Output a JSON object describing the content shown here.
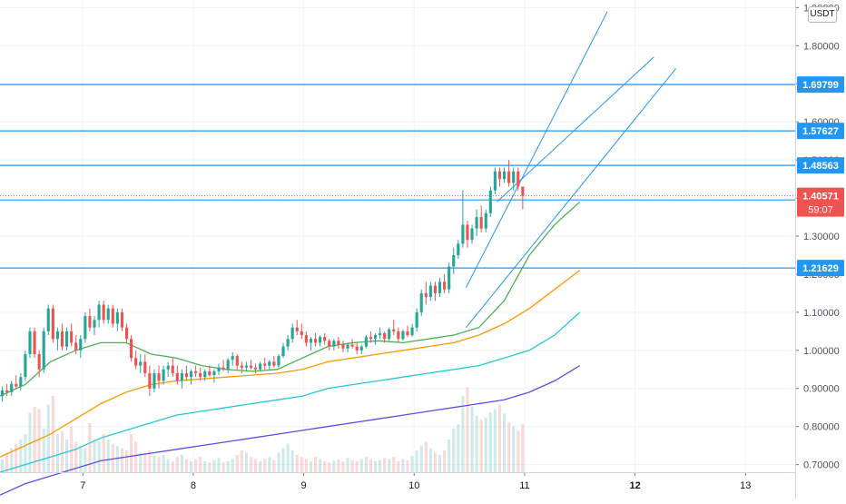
{
  "currency_label": "USDT",
  "chart_data": {
    "type": "candlestick",
    "y_axis": {
      "ticks": [
        "1.90000",
        "1.80000",
        "1.70000",
        "1.60000",
        "1.50000",
        "1.40000",
        "1.30000",
        "1.20000",
        "1.10000",
        "1.00000",
        "0.90000",
        "0.80000",
        "0.70000"
      ],
      "ylim": [
        0.68,
        1.92
      ]
    },
    "x_axis": {
      "ticks": [
        {
          "label": "7",
          "x": 7
        },
        {
          "label": "8",
          "x": 8
        },
        {
          "label": "9",
          "x": 9
        },
        {
          "label": "10",
          "x": 10
        },
        {
          "label": "11",
          "x": 11
        },
        {
          "label": "12",
          "x": 12,
          "bold": true
        },
        {
          "label": "13",
          "x": 13
        }
      ],
      "xlim": [
        6.25,
        13.45
      ]
    },
    "horizontal_levels": [
      {
        "value": 1.69799,
        "label": "1.69799"
      },
      {
        "value": 1.57627,
        "label": "1.57627"
      },
      {
        "value": 1.48563,
        "label": "1.48563"
      },
      {
        "value": 1.39498,
        "label": "1.39498"
      },
      {
        "value": 1.21629,
        "label": "1.21629"
      }
    ],
    "current_price": {
      "value": 1.40571,
      "label": "1.40571",
      "countdown": "59:07"
    },
    "candles": {
      "start_x": 6.25,
      "step": 0.0417,
      "ohlc": [
        [
          0.88,
          0.905,
          0.865,
          0.895
        ],
        [
          0.895,
          0.912,
          0.88,
          0.89
        ],
        [
          0.89,
          0.92,
          0.88,
          0.912
        ],
        [
          0.912,
          0.935,
          0.9,
          0.905
        ],
        [
          0.905,
          0.94,
          0.895,
          0.93
        ],
        [
          0.93,
          1.0,
          0.92,
          0.99
        ],
        [
          0.99,
          1.06,
          0.98,
          1.05
        ],
        [
          1.05,
          1.06,
          0.98,
          0.99
        ],
        [
          0.99,
          1.0,
          0.93,
          0.95
        ],
        [
          0.95,
          1.06,
          0.94,
          1.05
        ],
        [
          1.05,
          1.12,
          1.04,
          1.11
        ],
        [
          1.11,
          1.12,
          1.02,
          1.03
        ],
        [
          1.03,
          1.06,
          1.0,
          1.05
        ],
        [
          1.05,
          1.07,
          1.0,
          1.01
        ],
        [
          1.01,
          1.06,
          1.0,
          1.05
        ],
        [
          1.05,
          1.07,
          1.01,
          1.02
        ],
        [
          1.02,
          1.04,
          0.99,
          1.0
        ],
        [
          1.0,
          1.04,
          0.98,
          1.03
        ],
        [
          1.03,
          1.1,
          1.02,
          1.09
        ],
        [
          1.09,
          1.11,
          1.05,
          1.06
        ],
        [
          1.06,
          1.09,
          1.04,
          1.08
        ],
        [
          1.08,
          1.13,
          1.06,
          1.12
        ],
        [
          1.12,
          1.13,
          1.07,
          1.08
        ],
        [
          1.08,
          1.12,
          1.07,
          1.11
        ],
        [
          1.11,
          1.12,
          1.06,
          1.07
        ],
        [
          1.07,
          1.11,
          1.05,
          1.1
        ],
        [
          1.1,
          1.11,
          1.05,
          1.06
        ],
        [
          1.06,
          1.07,
          1.02,
          1.03
        ],
        [
          1.03,
          1.04,
          0.97,
          0.98
        ],
        [
          0.98,
          1.0,
          0.95,
          0.96
        ],
        [
          0.96,
          0.99,
          0.94,
          0.97
        ],
        [
          0.97,
          0.99,
          0.93,
          0.94
        ],
        [
          0.94,
          0.96,
          0.88,
          0.9
        ],
        [
          0.9,
          0.95,
          0.89,
          0.94
        ],
        [
          0.94,
          0.96,
          0.9,
          0.92
        ],
        [
          0.92,
          0.96,
          0.91,
          0.95
        ],
        [
          0.95,
          0.97,
          0.93,
          0.96
        ],
        [
          0.96,
          0.98,
          0.93,
          0.94
        ],
        [
          0.94,
          0.96,
          0.91,
          0.92
        ],
        [
          0.92,
          0.95,
          0.9,
          0.94
        ],
        [
          0.94,
          0.96,
          0.92,
          0.93
        ],
        [
          0.93,
          0.95,
          0.91,
          0.945
        ],
        [
          0.945,
          0.96,
          0.93,
          0.94
        ],
        [
          0.94,
          0.955,
          0.92,
          0.93
        ],
        [
          0.93,
          0.95,
          0.92,
          0.945
        ],
        [
          0.945,
          0.96,
          0.93,
          0.935
        ],
        [
          0.935,
          0.95,
          0.915,
          0.945
        ],
        [
          0.945,
          0.965,
          0.935,
          0.955
        ],
        [
          0.955,
          0.975,
          0.945,
          0.95
        ],
        [
          0.95,
          0.98,
          0.94,
          0.975
        ],
        [
          0.975,
          0.995,
          0.96,
          0.985
        ],
        [
          0.985,
          0.99,
          0.95,
          0.96
        ],
        [
          0.96,
          0.97,
          0.94,
          0.955
        ],
        [
          0.955,
          0.97,
          0.945,
          0.96
        ],
        [
          0.96,
          0.975,
          0.95,
          0.955
        ],
        [
          0.955,
          0.965,
          0.94,
          0.95
        ],
        [
          0.95,
          0.97,
          0.945,
          0.965
        ],
        [
          0.965,
          0.98,
          0.95,
          0.96
        ],
        [
          0.96,
          0.975,
          0.95,
          0.97
        ],
        [
          0.97,
          0.985,
          0.955,
          0.96
        ],
        [
          0.96,
          0.99,
          0.955,
          0.985
        ],
        [
          0.985,
          1.02,
          0.98,
          1.01
        ],
        [
          1.01,
          1.04,
          1.0,
          1.03
        ],
        [
          1.03,
          1.07,
          1.02,
          1.06
        ],
        [
          1.06,
          1.08,
          1.04,
          1.05
        ],
        [
          1.05,
          1.07,
          1.03,
          1.04
        ],
        [
          1.04,
          1.05,
          1.01,
          1.02
        ],
        [
          1.02,
          1.035,
          1.0,
          1.03
        ],
        [
          1.03,
          1.045,
          1.01,
          1.02
        ],
        [
          1.02,
          1.04,
          1.01,
          1.035
        ],
        [
          1.035,
          1.045,
          1.015,
          1.025
        ],
        [
          1.025,
          1.03,
          1.0,
          1.01
        ],
        [
          1.01,
          1.03,
          1.0,
          1.025
        ],
        [
          1.025,
          1.035,
          1.005,
          1.015
        ],
        [
          1.015,
          1.025,
          0.995,
          1.005
        ],
        [
          1.005,
          1.02,
          0.995,
          1.015
        ],
        [
          1.015,
          1.03,
          1.005,
          1.01
        ],
        [
          1.01,
          1.02,
          0.99,
          1.0
        ],
        [
          1.0,
          1.015,
          0.99,
          1.01
        ],
        [
          1.01,
          1.04,
          1.005,
          1.035
        ],
        [
          1.035,
          1.05,
          1.02,
          1.03
        ],
        [
          1.03,
          1.045,
          1.015,
          1.04
        ],
        [
          1.04,
          1.06,
          1.03,
          1.045
        ],
        [
          1.045,
          1.05,
          1.02,
          1.03
        ],
        [
          1.03,
          1.06,
          1.025,
          1.055
        ],
        [
          1.055,
          1.08,
          1.04,
          1.05
        ],
        [
          1.05,
          1.06,
          1.02,
          1.03
        ],
        [
          1.03,
          1.055,
          1.025,
          1.05
        ],
        [
          1.05,
          1.065,
          1.035,
          1.04
        ],
        [
          1.04,
          1.07,
          1.035,
          1.06
        ],
        [
          1.06,
          1.11,
          1.05,
          1.1
        ],
        [
          1.1,
          1.16,
          1.09,
          1.15
        ],
        [
          1.15,
          1.18,
          1.12,
          1.14
        ],
        [
          1.14,
          1.18,
          1.13,
          1.17
        ],
        [
          1.17,
          1.18,
          1.13,
          1.15
        ],
        [
          1.15,
          1.19,
          1.14,
          1.18
        ],
        [
          1.18,
          1.2,
          1.15,
          1.16
        ],
        [
          1.16,
          1.23,
          1.15,
          1.22
        ],
        [
          1.22,
          1.27,
          1.2,
          1.25
        ],
        [
          1.25,
          1.29,
          1.24,
          1.28
        ],
        [
          1.28,
          1.42,
          1.27,
          1.33
        ],
        [
          1.33,
          1.34,
          1.27,
          1.29
        ],
        [
          1.29,
          1.33,
          1.28,
          1.32
        ],
        [
          1.32,
          1.37,
          1.3,
          1.35
        ],
        [
          1.35,
          1.38,
          1.31,
          1.32
        ],
        [
          1.32,
          1.37,
          1.31,
          1.36
        ],
        [
          1.36,
          1.43,
          1.35,
          1.42
        ],
        [
          1.42,
          1.48,
          1.41,
          1.47
        ],
        [
          1.47,
          1.48,
          1.43,
          1.45
        ],
        [
          1.45,
          1.48,
          1.44,
          1.47
        ],
        [
          1.47,
          1.5,
          1.43,
          1.44
        ],
        [
          1.44,
          1.48,
          1.42,
          1.47
        ],
        [
          1.47,
          1.48,
          1.42,
          1.43
        ],
        [
          1.43,
          1.43,
          1.37,
          1.4057
        ]
      ]
    },
    "moving_averages": [
      {
        "color": "#4caf50",
        "x_start": 6.25,
        "x_end": 11.5,
        "values": [
          0.88,
          0.91,
          0.97,
          1.0,
          1.02,
          1.02,
          0.99,
          0.98,
          0.96,
          0.95,
          0.945,
          0.95,
          0.98,
          1.01,
          1.02,
          1.025,
          1.02,
          1.03,
          1.04,
          1.06,
          1.13,
          1.25,
          1.33,
          1.39
        ]
      },
      {
        "color": "#ff9800",
        "x_start": 6.25,
        "x_end": 11.5,
        "values": [
          0.72,
          0.75,
          0.78,
          0.82,
          0.86,
          0.89,
          0.91,
          0.92,
          0.925,
          0.93,
          0.935,
          0.94,
          0.95,
          0.97,
          0.98,
          0.99,
          1.0,
          1.01,
          1.02,
          1.04,
          1.07,
          1.11,
          1.16,
          1.21
        ]
      },
      {
        "color": "#26c6da",
        "x_start": 6.25,
        "x_end": 11.5,
        "values": [
          0.68,
          0.7,
          0.72,
          0.74,
          0.77,
          0.79,
          0.81,
          0.83,
          0.84,
          0.85,
          0.86,
          0.87,
          0.88,
          0.9,
          0.91,
          0.92,
          0.93,
          0.94,
          0.95,
          0.96,
          0.98,
          1.0,
          1.04,
          1.1
        ]
      },
      {
        "color": "#5b4ee6",
        "x_start": 6.25,
        "x_end": 11.5,
        "values": [
          0.62,
          0.65,
          0.67,
          0.69,
          0.71,
          0.72,
          0.73,
          0.74,
          0.75,
          0.76,
          0.77,
          0.78,
          0.79,
          0.8,
          0.81,
          0.82,
          0.83,
          0.84,
          0.85,
          0.86,
          0.87,
          0.89,
          0.92,
          0.96
        ]
      }
    ],
    "trendlines": [
      {
        "from": [
          10.47,
          1.165
        ],
        "to": [
          11.75,
          1.89
        ]
      },
      {
        "from": [
          10.75,
          1.39
        ],
        "to": [
          12.17,
          1.77
        ]
      },
      {
        "from": [
          10.47,
          1.06
        ],
        "to": [
          12.37,
          1.74
        ]
      }
    ],
    "volume": {
      "max": 100,
      "bars": [
        12,
        18,
        22,
        26,
        30,
        35,
        55,
        60,
        58,
        40,
        62,
        70,
        35,
        38,
        30,
        42,
        28,
        24,
        22,
        45,
        30,
        28,
        35,
        30,
        26,
        24,
        22,
        20,
        35,
        28,
        18,
        16,
        20,
        15,
        14,
        16,
        12,
        10,
        14,
        16,
        12,
        10,
        12,
        14,
        10,
        9,
        11,
        13,
        9,
        10,
        12,
        16,
        20,
        18,
        14,
        12,
        10,
        12,
        14,
        11,
        18,
        22,
        26,
        20,
        16,
        14,
        12,
        10,
        14,
        12,
        10,
        9,
        11,
        12,
        10,
        13,
        11,
        10,
        12,
        14,
        12,
        10,
        11,
        13,
        12,
        14,
        10,
        12,
        11,
        15,
        20,
        24,
        28,
        22,
        18,
        16,
        20,
        30,
        40,
        44,
        70,
        78,
        60,
        52,
        48,
        50,
        55,
        58,
        62,
        54,
        46,
        42,
        38,
        44
      ]
    }
  }
}
